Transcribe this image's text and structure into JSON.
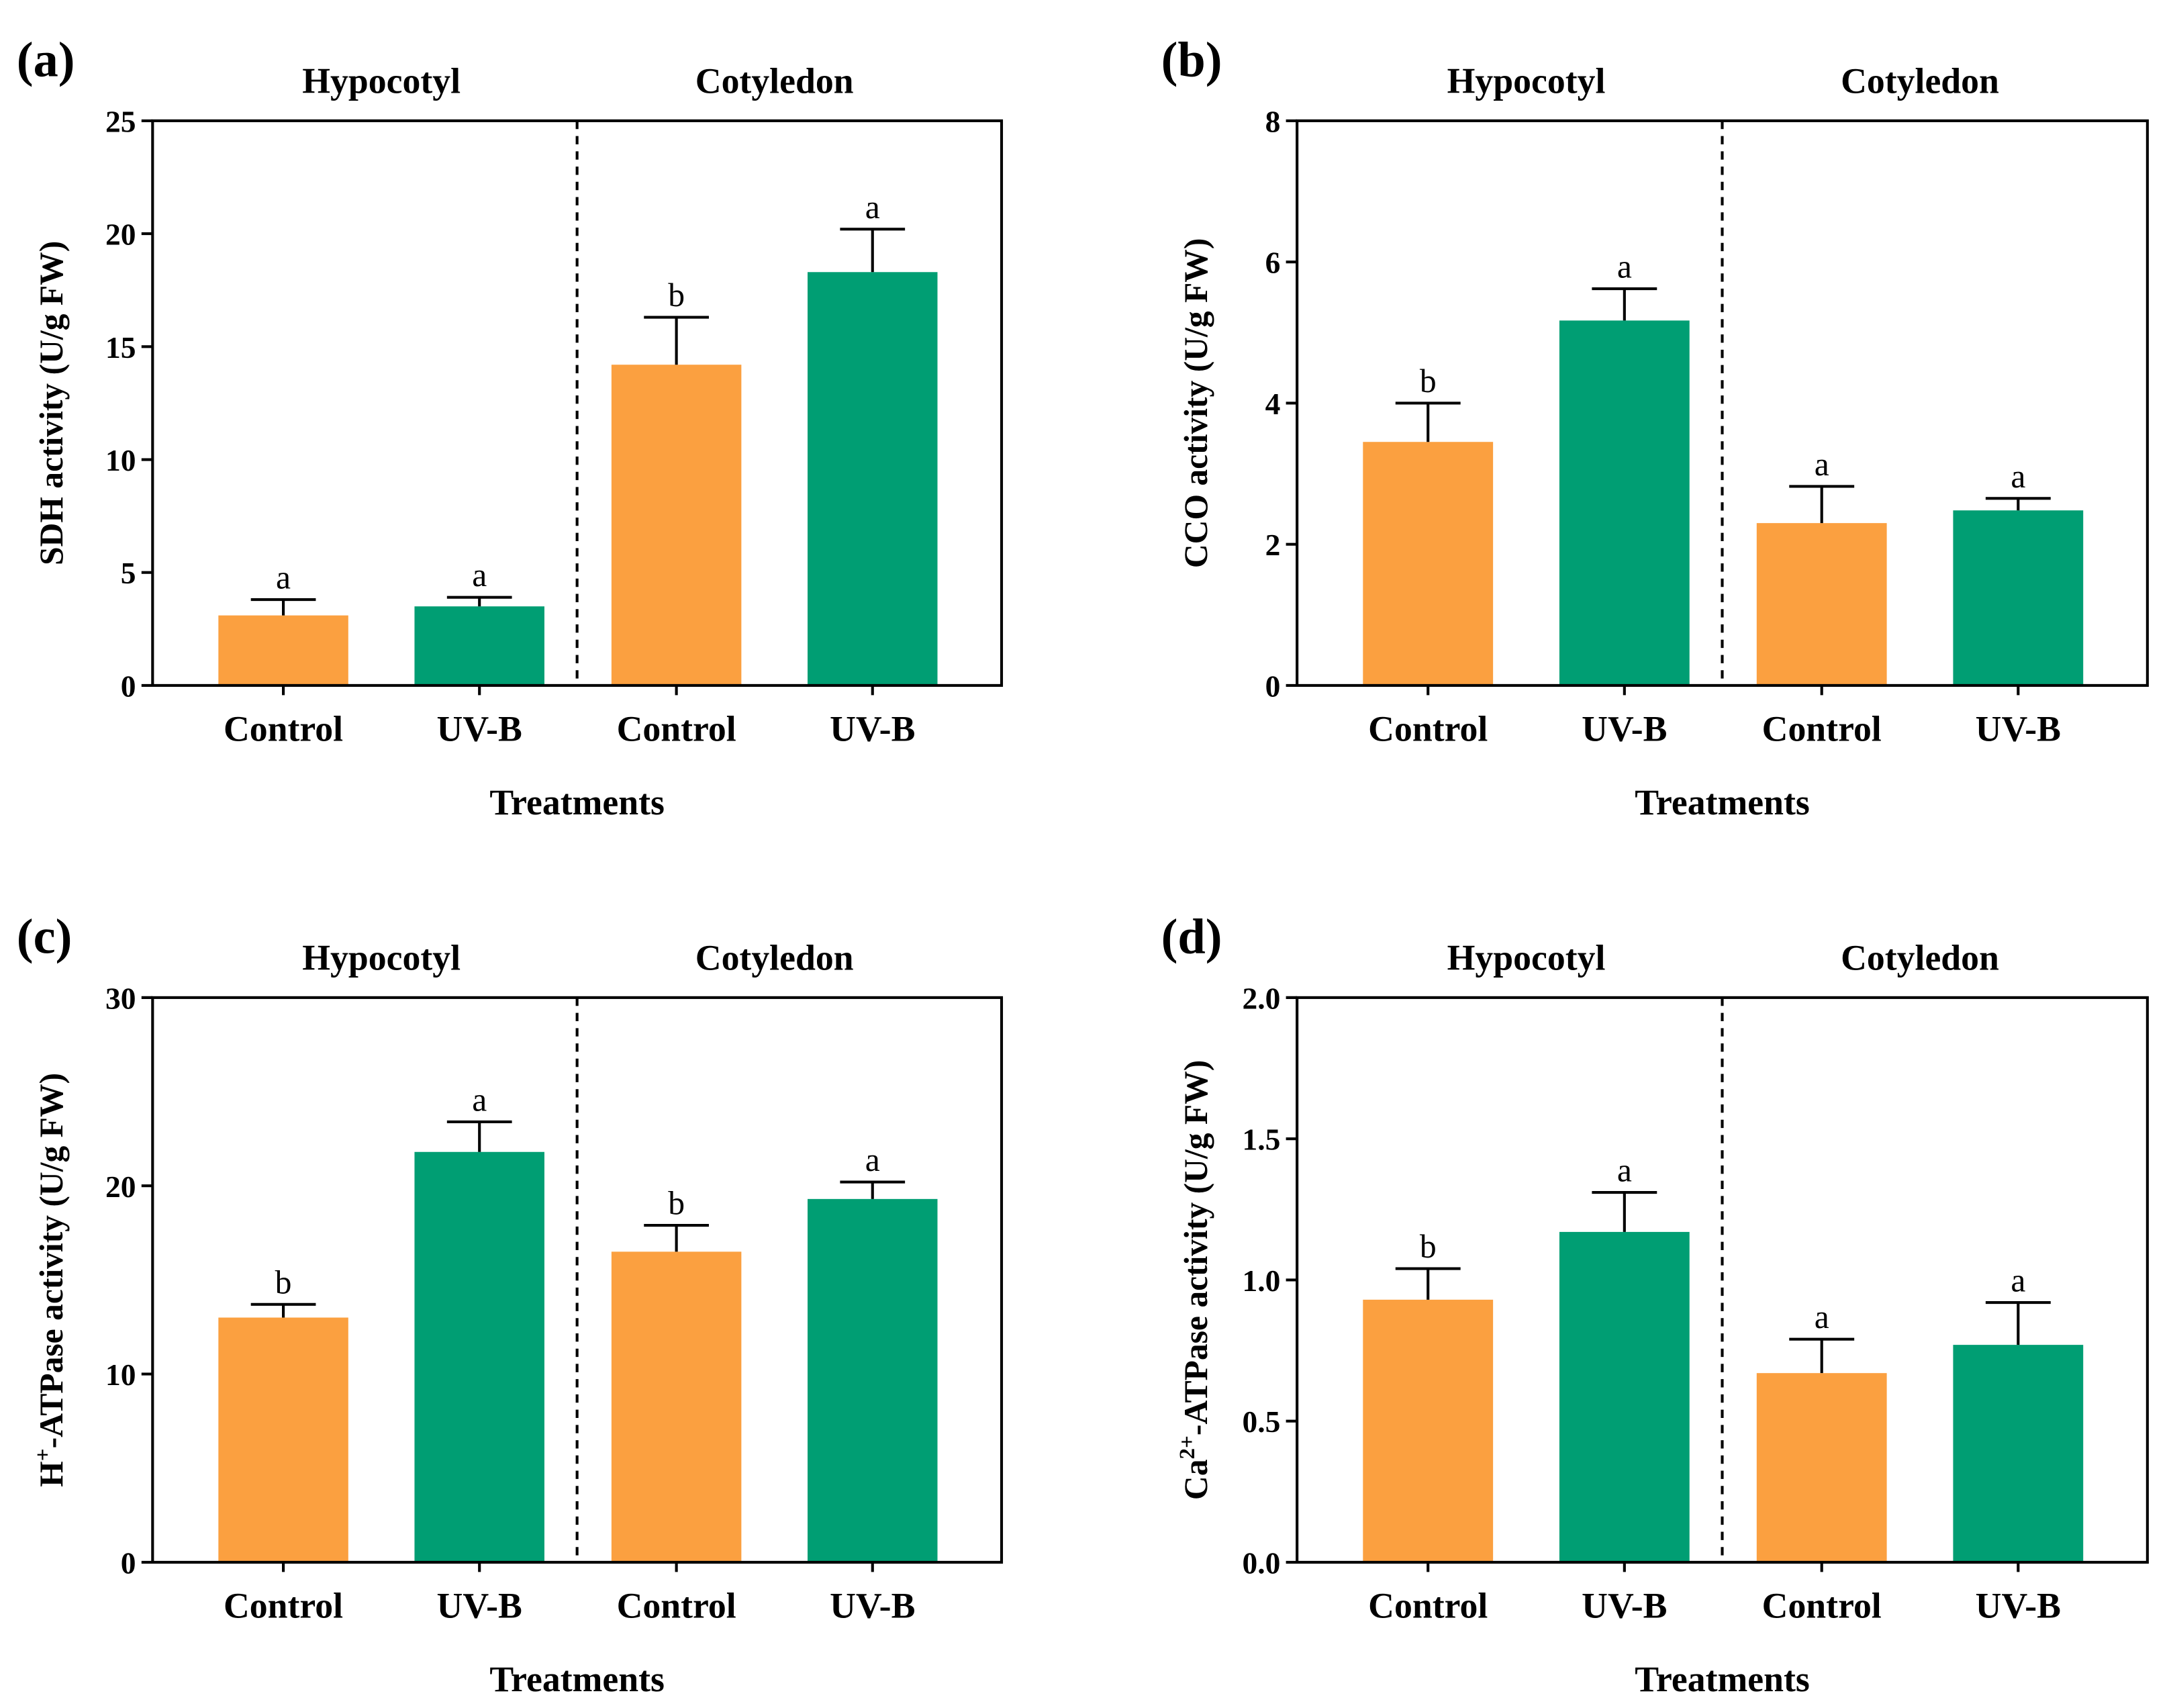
{
  "colors": {
    "control": "#FBA040",
    "uvb": "#009E73"
  },
  "chart_data": [
    {
      "type": "bar",
      "panel": "(a)",
      "ylabel": {
        "pre": "SDH activity (U/g FW)",
        "sup": "",
        "post": ""
      },
      "xlabel": "Treatments",
      "groups": [
        "Hypocotyl",
        "Cotyledon"
      ],
      "categories": [
        "Control",
        "UV-B",
        "Control",
        "UV-B"
      ],
      "values": [
        3.1,
        3.5,
        14.2,
        18.3
      ],
      "errors": [
        0.7,
        0.4,
        2.1,
        1.9
      ],
      "significance": [
        "a",
        "a",
        "b",
        "a"
      ],
      "ylim": [
        0,
        25
      ],
      "yticks": [
        "0",
        "5",
        "10",
        "15",
        "20",
        "25"
      ]
    },
    {
      "type": "bar",
      "panel": "(b)",
      "ylabel": {
        "pre": "CCO activity (U/g FW)",
        "sup": "",
        "post": ""
      },
      "xlabel": "Treatments",
      "groups": [
        "Hypocotyl",
        "Cotyledon"
      ],
      "categories": [
        "Control",
        "UV-B",
        "Control",
        "UV-B"
      ],
      "values": [
        3.45,
        5.17,
        2.3,
        2.48
      ],
      "errors": [
        0.55,
        0.45,
        0.52,
        0.17
      ],
      "significance": [
        "b",
        "a",
        "a",
        "a"
      ],
      "ylim": [
        0,
        8
      ],
      "yticks": [
        "0",
        "2",
        "4",
        "6",
        "8"
      ]
    },
    {
      "type": "bar",
      "panel": "(c)",
      "ylabel": {
        "pre": "H",
        "sup": "+",
        "post": "-ATPase activity (U/g FW)"
      },
      "xlabel": "Treatments",
      "groups": [
        "Hypocotyl",
        "Cotyledon"
      ],
      "categories": [
        "Control",
        "UV-B",
        "Control",
        "UV-B"
      ],
      "values": [
        13.0,
        21.8,
        16.5,
        19.3
      ],
      "errors": [
        0.7,
        1.6,
        1.4,
        0.9
      ],
      "significance": [
        "b",
        "a",
        "b",
        "a"
      ],
      "ylim": [
        0,
        30
      ],
      "yticks": [
        "0",
        "10",
        "20",
        "30"
      ]
    },
    {
      "type": "bar",
      "panel": "(d)",
      "ylabel": {
        "pre": "Ca",
        "sup": "2+",
        "post": "-ATPase activity (U/g FW)"
      },
      "xlabel": "Treatments",
      "groups": [
        "Hypocotyl",
        "Cotyledon"
      ],
      "categories": [
        "Control",
        "UV-B",
        "Control",
        "UV-B"
      ],
      "values": [
        0.93,
        1.17,
        0.67,
        0.77
      ],
      "errors": [
        0.11,
        0.14,
        0.12,
        0.15
      ],
      "significance": [
        "b",
        "a",
        "a",
        "a"
      ],
      "ylim": [
        0,
        2
      ],
      "yticks": [
        "0.0",
        "0.5",
        "1.0",
        "1.5",
        "2.0"
      ]
    }
  ]
}
